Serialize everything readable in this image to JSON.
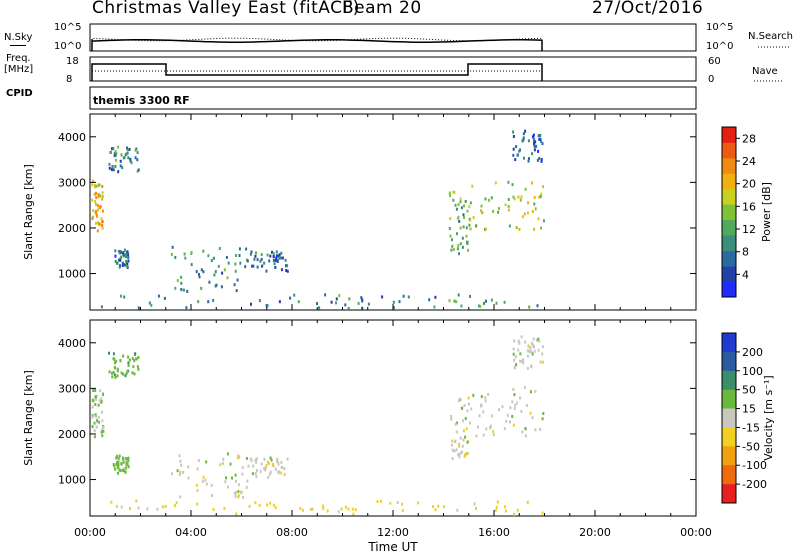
{
  "header": {
    "station": "Christmas Valley East (fitACF)",
    "beam": "Beam 20",
    "date": "27/Oct/2016"
  },
  "nsky_panel": {
    "left_label": "N.Sky",
    "right_label": "N.Search",
    "ytick_top": "10^5",
    "ytick_bottom": "10^0"
  },
  "freq_panel": {
    "left_label_line1": "Freq.",
    "left_label_line2": "[MHz]",
    "ytick_left_top": "18",
    "ytick_left_bottom": "8",
    "ytick_right_top": "60",
    "ytick_right_bottom": "0",
    "right_label": "Nave"
  },
  "cpid_panel": {
    "label": "CPID",
    "program": "themis 3300 RF"
  },
  "chart_data": [
    {
      "type": "heatmap",
      "panel": "power",
      "ylabel": "Slant Range [km]",
      "yticks": [
        "1000",
        "2000",
        "3000",
        "4000"
      ],
      "ylim": [
        200,
        4500
      ],
      "colorbar_label": "Power [dB]",
      "colorbar_ticks": [
        "4",
        "8",
        "12",
        "16",
        "20",
        "24",
        "28"
      ],
      "colorbar_range": [
        0,
        30
      ],
      "colors": [
        "#1f2bff",
        "#233fa8",
        "#2a6aa0",
        "#3a8e7a",
        "#52a85c",
        "#7ec238",
        "#c8d020",
        "#f0b010",
        "#f08a10",
        "#ee5a10",
        "#e62010"
      ],
      "regions": [
        {
          "t": [
            0.05,
            0.5
          ],
          "r": [
            1900,
            3000
          ],
          "p": 20
        },
        {
          "t": [
            0.7,
            1.9
          ],
          "r": [
            3200,
            3750
          ],
          "p": 9
        },
        {
          "t": [
            0.9,
            1.5
          ],
          "r": [
            1100,
            1500
          ],
          "p": 7
        },
        {
          "t": [
            3.2,
            6.3
          ],
          "r": [
            550,
            1550
          ],
          "p": 10
        },
        {
          "t": [
            6.3,
            7.8
          ],
          "r": [
            1000,
            1450
          ],
          "p": 7
        },
        {
          "t": [
            14.2,
            15.0
          ],
          "r": [
            1400,
            2800
          ],
          "p": 13
        },
        {
          "t": [
            15.0,
            18.0
          ],
          "r": [
            1900,
            3000
          ],
          "p": 17
        },
        {
          "t": [
            16.7,
            17.9
          ],
          "r": [
            3400,
            4100
          ],
          "p": 6
        },
        {
          "t": [
            0.1,
            18.0
          ],
          "r": [
            200,
            500
          ],
          "p": 9
        }
      ]
    },
    {
      "type": "heatmap",
      "panel": "velocity",
      "ylabel": "Slant Range [km]",
      "yticks": [
        "1000",
        "2000",
        "3000",
        "4000"
      ],
      "ylim": [
        200,
        4500
      ],
      "colorbar_label": "Velocity [m s⁻¹]",
      "colorbar_ticks": [
        "200",
        "100",
        "50",
        "15",
        "-15",
        "-50",
        "-100",
        "-200"
      ],
      "colors": [
        "#1f3bd0",
        "#2a5aa0",
        "#3a8e6a",
        "#6ab83c",
        "#c8c8c0",
        "#f0d020",
        "#f0a010",
        "#f06a10",
        "#e62020"
      ],
      "regions": [
        {
          "t": [
            0.05,
            0.5
          ],
          "r": [
            1900,
            3000
          ],
          "v": 15
        },
        {
          "t": [
            0.7,
            1.9
          ],
          "r": [
            3200,
            3750
          ],
          "v": 40
        },
        {
          "t": [
            0.9,
            1.5
          ],
          "r": [
            1100,
            1500
          ],
          "v": 30
        },
        {
          "t": [
            3.2,
            6.3
          ],
          "r": [
            550,
            1550
          ],
          "v": 0
        },
        {
          "t": [
            6.3,
            7.8
          ],
          "r": [
            1000,
            1450
          ],
          "v": 0
        },
        {
          "t": [
            14.2,
            15.0
          ],
          "r": [
            1400,
            2800
          ],
          "v": 0
        },
        {
          "t": [
            15.0,
            18.0
          ],
          "r": [
            1900,
            3000
          ],
          "v": 0
        },
        {
          "t": [
            16.7,
            17.9
          ],
          "r": [
            3400,
            4100
          ],
          "v": 0
        },
        {
          "t": [
            0.1,
            18.0
          ],
          "r": [
            200,
            500
          ],
          "v": -30
        }
      ],
      "xlabel": "Time UT",
      "xticks": [
        "00:00",
        "04:00",
        "08:00",
        "12:00",
        "16:00",
        "20:00",
        "00:00"
      ],
      "xlim": [
        0,
        24
      ]
    }
  ]
}
